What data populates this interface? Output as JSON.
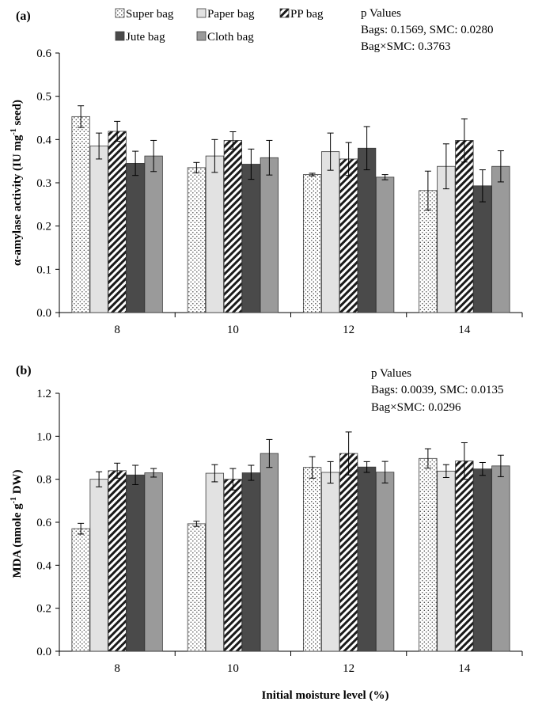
{
  "chart_data": [
    {
      "type": "bar",
      "panel_label": "(a)",
      "ylabel_parts": [
        "α-amylase activity (IU mg",
        "-1",
        " seed)"
      ],
      "xlabel": "",
      "categories": [
        "8",
        "10",
        "12",
        "14"
      ],
      "ylim": [
        0,
        0.6
      ],
      "yticks": [
        "0.0",
        "0.1",
        "0.2",
        "0.3",
        "0.4",
        "0.5",
        "0.6"
      ],
      "grid": false,
      "legend_position": "top",
      "series": [
        {
          "name": "Super bag",
          "values": [
            0.453,
            0.335,
            0.319,
            0.282
          ],
          "errors": [
            0.025,
            0.012,
            0.003,
            0.045
          ]
        },
        {
          "name": "Paper bag",
          "values": [
            0.385,
            0.362,
            0.372,
            0.338
          ],
          "errors": [
            0.03,
            0.038,
            0.043,
            0.052
          ]
        },
        {
          "name": "PP bag",
          "values": [
            0.419,
            0.398,
            0.355,
            0.398
          ],
          "errors": [
            0.023,
            0.02,
            0.038,
            0.05
          ]
        },
        {
          "name": "Jute bag",
          "values": [
            0.345,
            0.343,
            0.38,
            0.293
          ],
          "errors": [
            0.028,
            0.035,
            0.05,
            0.037
          ]
        },
        {
          "name": "Cloth bag",
          "values": [
            0.362,
            0.358,
            0.313,
            0.338
          ],
          "errors": [
            0.036,
            0.04,
            0.006,
            0.036
          ]
        }
      ],
      "annotation": [
        "p Values",
        "Bags: 0.1569, SMC: 0.0280",
        "Bag×SMC: 0.3763"
      ]
    },
    {
      "type": "bar",
      "panel_label": "(b)",
      "ylabel_parts": [
        "MDA (nmole g",
        "-1",
        " DW)"
      ],
      "xlabel": "Initial moisture level (%)",
      "categories": [
        "8",
        "10",
        "12",
        "14"
      ],
      "ylim": [
        0,
        1.2
      ],
      "yticks": [
        "0.0",
        "0.2",
        "0.4",
        "0.6",
        "0.8",
        "1.0",
        "1.2"
      ],
      "grid": false,
      "series": [
        {
          "name": "Super bag",
          "values": [
            0.57,
            0.593,
            0.855,
            0.897
          ],
          "errors": [
            0.025,
            0.012,
            0.05,
            0.045
          ]
        },
        {
          "name": "Paper bag",
          "values": [
            0.8,
            0.828,
            0.832,
            0.838
          ],
          "errors": [
            0.035,
            0.04,
            0.05,
            0.03
          ]
        },
        {
          "name": "PP bag",
          "values": [
            0.84,
            0.8,
            0.92,
            0.885
          ],
          "errors": [
            0.035,
            0.05,
            0.1,
            0.085
          ]
        },
        {
          "name": "Jute bag",
          "values": [
            0.82,
            0.83,
            0.857,
            0.848
          ],
          "errors": [
            0.045,
            0.035,
            0.025,
            0.03
          ]
        },
        {
          "name": "Cloth bag",
          "values": [
            0.83,
            0.92,
            0.833,
            0.862
          ],
          "errors": [
            0.02,
            0.065,
            0.05,
            0.05
          ]
        }
      ],
      "annotation": [
        "p Values",
        "Bags: 0.0039, SMC: 0.0135",
        "Bag×SMC: 0.0296"
      ]
    }
  ],
  "series_styles": [
    {
      "fill": "url(#pat-dots)",
      "legend_fill": "url(#pat-dots)"
    },
    {
      "fill": "#e2e2e2",
      "legend_fill": "#e2e2e2"
    },
    {
      "fill": "url(#pat-hatch)",
      "legend_fill": "url(#pat-hatch)"
    },
    {
      "fill": "#4a4a4a",
      "legend_fill": "#4a4a4a"
    },
    {
      "fill": "#9a9a9a",
      "legend_fill": "#9a9a9a"
    }
  ],
  "colors": {
    "axis": "#000000",
    "bar_stroke": "#3a3a3a",
    "text": "#000000"
  }
}
